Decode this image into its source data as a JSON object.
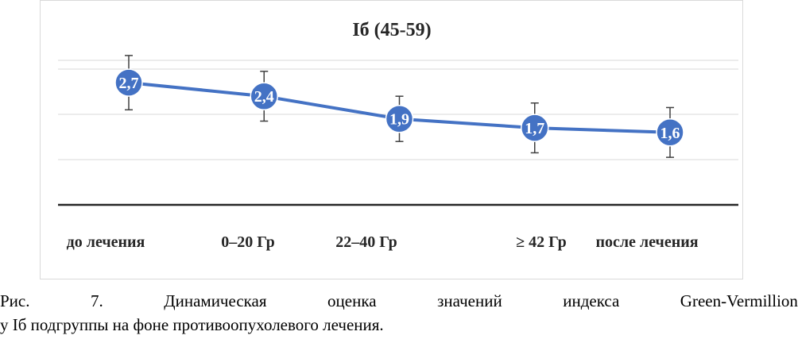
{
  "chart_data": {
    "type": "line",
    "title": "Iб (45-59)",
    "categories": [
      "до лечения",
      "0–20 Гр",
      "22–40 Гр",
      "≥ 42 Гр",
      "после лечения"
    ],
    "series": [
      {
        "values": [
          2.7,
          2.4,
          1.9,
          1.7,
          1.6
        ],
        "error": [
          0.6,
          0.55,
          0.5,
          0.55,
          0.55
        ]
      }
    ],
    "point_labels": [
      "2,7",
      "2,4",
      "1,9",
      "1,7",
      "1,6"
    ],
    "ylim": [
      0,
      4
    ],
    "xlabel": "",
    "ylabel": "",
    "grid": true,
    "colors": {
      "line": "#4472c4",
      "marker": "#4472c4",
      "errorbar": "#404040",
      "gridline": "#d9d9d9",
      "axis": "#262626"
    }
  },
  "caption": {
    "line1": [
      "Рис.",
      "7.",
      "Динамическая",
      "оценка",
      "значений",
      "индекса",
      "Green-Vermillion"
    ],
    "line2": "у Iб подгруппы на фоне противоопухолевого лечения."
  }
}
